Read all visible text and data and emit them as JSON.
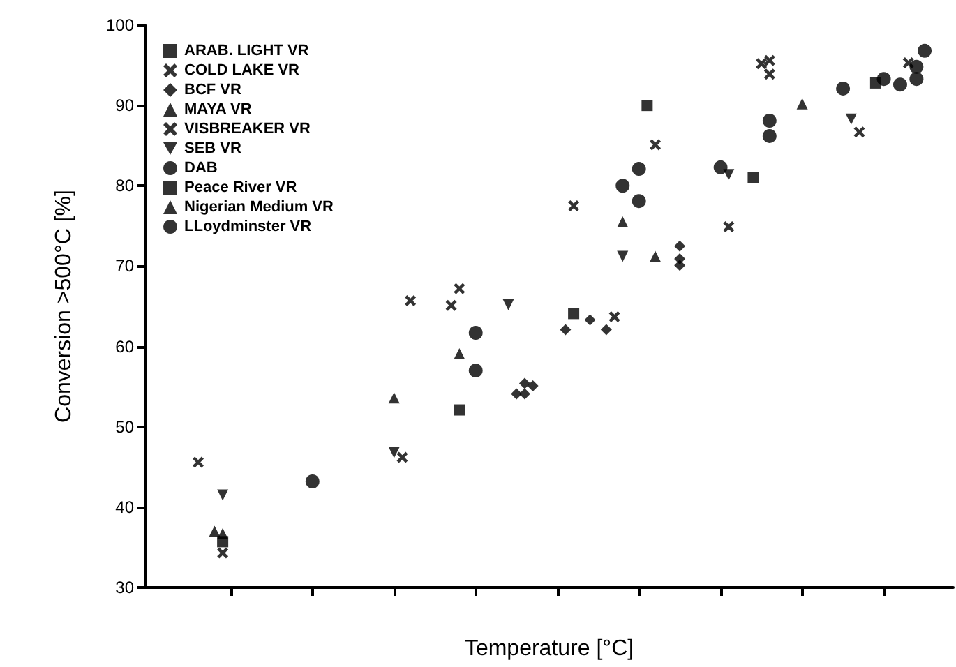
{
  "chart_data": {
    "type": "scatter",
    "xlabel": "Temperature [°C]",
    "ylabel": "Conversion >500°C [%]",
    "categories": [
      null,
      null,
      null,
      null,
      null,
      null,
      null,
      null,
      null,
      null,
      null,
      null,
      null,
      null,
      null,
      null,
      null,
      null,
      null,
      null,
      null,
      null,
      null,
      null,
      null,
      null,
      null,
      null,
      null,
      null,
      null,
      null,
      null,
      null,
      null,
      null,
      null,
      null,
      null,
      null,
      null,
      null,
      null,
      null,
      null,
      null,
      null,
      null,
      null,
      null,
      null,
      null,
      null,
      null,
      null,
      null,
      null,
      null,
      null,
      null,
      null,
      null,
      null,
      null,
      null,
      null,
      null,
      null,
      null,
      null,
      null,
      null,
      null,
      null,
      null,
      null,
      null,
      null,
      null,
      null,
      null,
      null,
      null,
      null,
      null,
      null,
      null,
      null,
      null,
      null,
      null,
      null,
      null,
      null,
      null,
      null,
      null,
      null,
      null
    ],
    "ylim": [
      30,
      100
    ],
    "yticks": [
      30,
      40,
      50,
      60,
      70,
      80,
      90,
      100
    ],
    "tick_labels": "y",
    "legend": "top left",
    "series": [
      {
        "name": "ARAB. LIGHT VR",
        "color": "#000000",
        "marker": "square",
        "values": [
          null,
          null,
          null,
          null,
          null,
          null,
          null,
          null,
          null,
          35.7,
          null,
          null,
          null,
          null,
          null,
          null,
          null,
          null,
          null,
          null,
          null,
          null,
          null,
          null,
          null,
          null,
          null,
          null,
          null,
          null,
          null,
          null,
          null,
          null,
          null,
          null,
          null,
          null,
          52.1,
          null,
          null,
          null,
          null,
          null,
          null,
          null,
          null,
          null,
          null,
          null,
          null,
          null,
          64.1,
          null,
          null,
          null,
          null,
          null,
          null,
          null,
          null,
          null,
          null,
          null,
          null,
          null,
          null,
          null,
          null,
          null,
          null,
          null,
          null,
          null,
          81.0,
          null,
          null,
          null,
          null,
          null,
          null,
          null,
          null,
          null,
          null,
          null,
          null,
          null,
          null,
          92.8,
          null,
          null,
          null,
          null,
          null,
          null,
          null,
          null,
          null
        ]
      },
      {
        "name": "COLD LAKE VR",
        "color": "#000000",
        "marker": "cross",
        "values": [
          null,
          null,
          null,
          null,
          null,
          null,
          45.6,
          null,
          null,
          null,
          null,
          null,
          null,
          null,
          null,
          null,
          null,
          null,
          null,
          null,
          null,
          null,
          null,
          null,
          null,
          null,
          null,
          null,
          null,
          null,
          null,
          null,
          65.7,
          null,
          null,
          null,
          null,
          65.1,
          67.2,
          null,
          null,
          null,
          null,
          null,
          null,
          null,
          null,
          null,
          null,
          null,
          null,
          null,
          77.5,
          null,
          null,
          null,
          null,
          null,
          null,
          null,
          null,
          null,
          85.1,
          null,
          null,
          null,
          null,
          null,
          null,
          null,
          null,
          null,
          null,
          null,
          null,
          95.2,
          95.6,
          null,
          null,
          null,
          null,
          null,
          null,
          null,
          null,
          null,
          null,
          null,
          null,
          null,
          null,
          null,
          null,
          null,
          null,
          null,
          null,
          null,
          null
        ]
      },
      {
        "color": "#000000",
        "marker": "cross",
        "values": [
          null,
          null,
          null,
          null,
          null,
          null,
          null,
          null,
          null,
          null,
          null,
          null,
          null,
          null,
          null,
          null,
          null,
          null,
          null,
          null,
          null,
          null,
          null,
          null,
          null,
          null,
          null,
          null,
          null,
          null,
          null,
          null,
          null,
          null,
          null,
          null,
          null,
          null,
          null,
          null,
          null,
          null,
          null,
          null,
          null,
          null,
          null,
          null,
          null,
          null,
          null,
          null,
          null,
          null,
          null,
          null,
          null,
          null,
          null,
          null,
          null,
          null,
          null,
          null,
          null,
          null,
          null,
          null,
          null,
          null,
          null,
          null,
          null,
          null,
          null,
          null,
          93.9,
          null,
          null,
          null,
          null,
          null,
          null,
          null,
          null,
          null,
          null,
          null,
          null,
          null,
          null,
          null,
          null,
          null,
          null,
          null,
          null,
          null,
          null
        ]
      },
      {
        "name": "BCF VR",
        "color": "#000000",
        "marker": "diamond",
        "values": [
          null,
          null,
          null,
          null,
          null,
          null,
          null,
          null,
          null,
          null,
          null,
          null,
          null,
          null,
          null,
          null,
          null,
          null,
          null,
          null,
          null,
          null,
          null,
          null,
          null,
          null,
          null,
          null,
          null,
          null,
          null,
          null,
          null,
          null,
          null,
          null,
          null,
          null,
          null,
          null,
          null,
          null,
          null,
          null,
          null,
          54.1,
          55.4,
          55.1,
          null,
          null,
          null,
          62.1,
          null,
          null,
          63.3,
          null,
          62.1,
          null,
          null,
          null,
          null,
          null,
          null,
          null,
          null,
          72.5,
          null,
          null,
          null,
          null,
          null,
          null,
          null,
          null,
          null,
          null,
          null,
          null,
          null,
          null,
          null,
          null,
          null,
          null,
          null,
          null,
          null,
          null,
          null,
          null,
          null,
          null,
          null,
          null,
          null,
          null,
          null,
          null,
          null
        ]
      },
      {
        "color": "#000000",
        "marker": "diamond",
        "values": [
          null,
          null,
          null,
          null,
          null,
          null,
          null,
          null,
          null,
          null,
          null,
          null,
          null,
          null,
          null,
          null,
          null,
          null,
          null,
          null,
          null,
          null,
          null,
          null,
          null,
          null,
          null,
          null,
          null,
          null,
          null,
          null,
          null,
          null,
          null,
          null,
          null,
          null,
          null,
          null,
          null,
          null,
          null,
          null,
          null,
          null,
          54.1,
          null,
          null,
          null,
          null,
          null,
          null,
          null,
          null,
          null,
          null,
          null,
          null,
          null,
          null,
          null,
          null,
          null,
          null,
          70.9,
          null,
          null,
          null,
          null,
          null,
          null,
          null,
          null,
          null,
          null,
          null,
          null,
          null,
          null,
          null,
          null,
          null,
          null,
          null,
          null,
          null,
          null,
          null,
          null,
          null,
          null,
          null,
          null,
          null,
          null,
          null,
          null,
          null
        ]
      },
      {
        "color": "#000000",
        "marker": "diamond",
        "values": [
          null,
          null,
          null,
          null,
          null,
          null,
          null,
          null,
          null,
          null,
          null,
          null,
          null,
          null,
          null,
          null,
          null,
          null,
          null,
          null,
          null,
          null,
          null,
          null,
          null,
          null,
          null,
          null,
          null,
          null,
          null,
          null,
          null,
          null,
          null,
          null,
          null,
          null,
          null,
          null,
          null,
          null,
          null,
          null,
          null,
          null,
          null,
          null,
          null,
          null,
          null,
          null,
          null,
          null,
          null,
          null,
          null,
          null,
          null,
          null,
          null,
          null,
          null,
          null,
          null,
          70.1,
          null,
          null,
          null,
          null,
          null,
          null,
          null,
          null,
          null,
          null,
          null,
          null,
          null,
          null,
          null,
          null,
          null,
          null,
          null,
          null,
          null,
          null,
          null,
          null,
          null,
          null,
          null,
          null,
          null,
          null,
          null,
          null,
          null
        ]
      },
      {
        "name": "MAYA VR",
        "color": "#000000",
        "marker": "triangle",
        "values": [
          null,
          null,
          null,
          null,
          null,
          null,
          null,
          null,
          37.0,
          36.7,
          null,
          null,
          null,
          null,
          null,
          null,
          null,
          null,
          null,
          null,
          null,
          null,
          null,
          null,
          null,
          null,
          null,
          null,
          null,
          null,
          53.6,
          null,
          null,
          null,
          null,
          null,
          null,
          null,
          59.1,
          null,
          null,
          null,
          null,
          null,
          null,
          null,
          null,
          null,
          null,
          null,
          null,
          null,
          null,
          null,
          null,
          null,
          null,
          null,
          75.5,
          null,
          null,
          null,
          null,
          null,
          null,
          null,
          null,
          null,
          null,
          null,
          null,
          null,
          null,
          null,
          null,
          null,
          null,
          null,
          null,
          null,
          90.2,
          null,
          null,
          null,
          null,
          null,
          null,
          null,
          null,
          null,
          null,
          null,
          null,
          null,
          null,
          null,
          null,
          null,
          null
        ]
      },
      {
        "name": "VISBREAKER VR",
        "color": "#000000",
        "marker": "cross",
        "values": [
          null,
          null,
          null,
          null,
          null,
          null,
          null,
          null,
          null,
          34.3,
          null,
          null,
          null,
          null,
          null,
          null,
          null,
          null,
          null,
          null,
          null,
          null,
          null,
          null,
          null,
          null,
          null,
          null,
          null,
          null,
          null,
          46.2,
          null,
          null,
          null,
          null,
          null,
          null,
          null,
          null,
          null,
          null,
          null,
          null,
          null,
          null,
          null,
          null,
          null,
          null,
          null,
          null,
          null,
          null,
          null,
          null,
          null,
          63.7,
          null,
          null,
          null,
          null,
          null,
          null,
          null,
          null,
          null,
          null,
          null,
          null,
          null,
          74.9,
          null,
          null,
          null,
          null,
          null,
          null,
          null,
          null,
          null,
          null,
          null,
          null,
          null,
          null,
          null,
          86.7,
          null,
          null,
          null,
          null,
          null,
          95.3,
          null,
          null,
          null,
          null,
          null
        ]
      },
      {
        "name": "SEB VR",
        "color": "#000000",
        "marker": "triangle-down",
        "values": [
          null,
          null,
          null,
          null,
          null,
          null,
          null,
          null,
          null,
          41.5,
          null,
          null,
          null,
          null,
          null,
          null,
          null,
          null,
          null,
          null,
          null,
          null,
          null,
          null,
          null,
          null,
          null,
          null,
          null,
          null,
          46.8,
          null,
          null,
          null,
          null,
          null,
          null,
          null,
          null,
          null,
          null,
          null,
          null,
          null,
          65.2,
          null,
          null,
          null,
          null,
          null,
          null,
          null,
          null,
          null,
          null,
          null,
          null,
          null,
          71.2,
          null,
          null,
          null,
          null,
          null,
          null,
          null,
          null,
          null,
          null,
          null,
          null,
          81.4,
          null,
          null,
          null,
          null,
          null,
          null,
          null,
          null,
          null,
          null,
          null,
          null,
          null,
          null,
          88.3,
          null,
          null,
          null,
          null,
          null,
          null,
          null,
          null,
          null,
          null,
          null,
          null
        ]
      },
      {
        "name": "DAB",
        "color": "#000000",
        "marker": "circle",
        "values": [
          null,
          null,
          null,
          null,
          null,
          null,
          null,
          null,
          null,
          null,
          null,
          null,
          null,
          null,
          null,
          null,
          null,
          null,
          null,
          null,
          43.2,
          null,
          null,
          null,
          null,
          null,
          null,
          null,
          null,
          null,
          null,
          null,
          null,
          null,
          null,
          null,
          null,
          null,
          null,
          null,
          57.0,
          null,
          null,
          null,
          null,
          null,
          null,
          null,
          null,
          null,
          null,
          null,
          null,
          null,
          null,
          null,
          null,
          null,
          null,
          null,
          78.1,
          null,
          null,
          null,
          null,
          null,
          null,
          null,
          null,
          null,
          82.3,
          null,
          null,
          null,
          null,
          null,
          86.2,
          null,
          null,
          null,
          null,
          null,
          null,
          null,
          null,
          92.1,
          null,
          null,
          null,
          null,
          93.3,
          null,
          92.6,
          null,
          93.3,
          96.8,
          null,
          null,
          null
        ]
      },
      {
        "color": "#000000",
        "marker": "circle",
        "values": [
          null,
          null,
          null,
          null,
          null,
          null,
          null,
          null,
          null,
          null,
          null,
          null,
          null,
          null,
          null,
          null,
          null,
          null,
          null,
          null,
          null,
          null,
          null,
          null,
          null,
          null,
          null,
          null,
          null,
          null,
          null,
          null,
          null,
          null,
          null,
          null,
          null,
          null,
          null,
          null,
          61.7,
          null,
          null,
          null,
          null,
          null,
          null,
          null,
          null,
          null,
          null,
          null,
          null,
          null,
          null,
          null,
          null,
          null,
          null,
          null,
          82.1,
          null,
          null,
          null,
          null,
          null,
          null,
          null,
          null,
          null,
          null,
          null,
          null,
          null,
          null,
          null,
          88.1,
          null,
          null,
          null,
          null,
          null,
          null,
          null,
          null,
          null,
          null,
          null,
          null,
          null,
          null,
          null,
          null,
          null,
          94.8,
          null,
          null,
          null,
          null
        ]
      },
      {
        "name": "Peace River VR",
        "color": "#000000",
        "marker": "square",
        "values": [
          null,
          null,
          null,
          null,
          null,
          null,
          null,
          null,
          null,
          null,
          null,
          null,
          null,
          null,
          null,
          null,
          null,
          null,
          null,
          null,
          null,
          null,
          null,
          null,
          null,
          null,
          null,
          null,
          null,
          null,
          null,
          null,
          null,
          null,
          null,
          null,
          null,
          null,
          null,
          null,
          null,
          null,
          null,
          null,
          null,
          null,
          null,
          null,
          null,
          null,
          null,
          null,
          null,
          null,
          null,
          null,
          null,
          null,
          null,
          null,
          null,
          90.0,
          null,
          null,
          null,
          null,
          null,
          null,
          null,
          null,
          null,
          null,
          null,
          null,
          null,
          null,
          null,
          null,
          null,
          null,
          null,
          null,
          null,
          null,
          null,
          null,
          null,
          null,
          null,
          null,
          null,
          null,
          null,
          null,
          null,
          null,
          null,
          null,
          null
        ]
      },
      {
        "name": "Nigerian Medium VR",
        "color": "#000000",
        "marker": "triangle",
        "values": [
          null,
          null,
          null,
          null,
          null,
          null,
          null,
          null,
          null,
          null,
          null,
          null,
          null,
          null,
          null,
          null,
          null,
          null,
          null,
          null,
          null,
          null,
          null,
          null,
          null,
          null,
          null,
          null,
          null,
          null,
          null,
          null,
          null,
          null,
          null,
          null,
          null,
          null,
          null,
          null,
          null,
          null,
          null,
          null,
          null,
          null,
          null,
          null,
          null,
          null,
          null,
          null,
          null,
          null,
          null,
          null,
          null,
          null,
          null,
          null,
          null,
          null,
          71.2,
          null,
          null,
          null,
          null,
          null,
          null,
          null,
          null,
          null,
          null,
          null,
          null,
          null,
          null,
          null,
          null,
          null,
          null,
          null,
          null,
          null,
          null,
          null,
          null,
          null,
          null,
          null,
          null,
          null,
          null,
          null,
          null,
          null,
          null,
          null,
          null
        ]
      },
      {
        "name": "LLoydminster VR",
        "color": "#000000",
        "marker": "circle",
        "values": [
          null,
          null,
          null,
          null,
          null,
          null,
          null,
          null,
          null,
          null,
          null,
          null,
          null,
          null,
          null,
          null,
          null,
          null,
          null,
          null,
          null,
          null,
          null,
          null,
          null,
          null,
          null,
          null,
          null,
          null,
          null,
          null,
          null,
          null,
          null,
          null,
          null,
          null,
          null,
          null,
          null,
          null,
          null,
          null,
          null,
          null,
          null,
          null,
          null,
          null,
          null,
          null,
          null,
          null,
          null,
          null,
          null,
          null,
          80.0,
          null,
          null,
          null,
          null,
          null,
          null,
          null,
          null,
          null,
          null,
          null,
          null,
          null,
          null,
          null,
          null,
          null,
          null,
          null,
          null,
          null,
          null,
          null,
          null,
          null,
          null,
          null,
          null,
          null,
          null,
          null,
          null,
          null,
          null,
          null,
          null,
          null,
          null,
          null,
          null
        ]
      }
    ]
  }
}
